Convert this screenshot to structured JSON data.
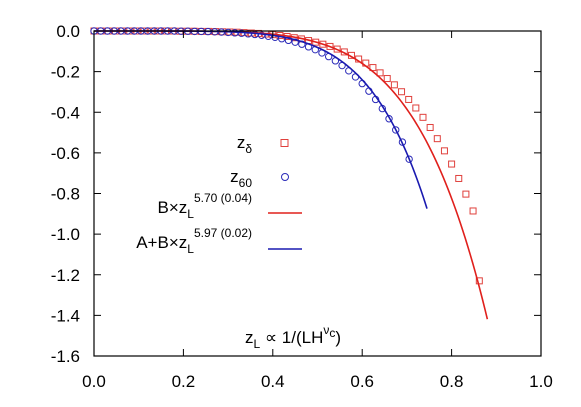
{
  "chart_data": {
    "type": "scatter",
    "title": "",
    "xlabel": "",
    "ylabel": "",
    "xlim": [
      0.0,
      1.0
    ],
    "ylim": [
      -1.6,
      0.0
    ],
    "x_ticks": [
      "0.0",
      "0.2",
      "0.4",
      "0.6",
      "0.8",
      "1.0"
    ],
    "y_ticks": [
      "0.0",
      "-0.2",
      "-0.4",
      "-0.6",
      "-0.8",
      "-1.0",
      "-1.2",
      "-1.4",
      "-1.6"
    ],
    "grid": false,
    "legend_position": "center-right",
    "annotation": {
      "base": "z",
      "base_sub": "L",
      "middle": " ∝ 1/(LH",
      "exp": "ν",
      "exp_sub": "c",
      "end": ")"
    },
    "series": [
      {
        "name": "z_δ",
        "label_base": "z",
        "label_sub": "δ",
        "kind": "markers",
        "marker": "square",
        "color": "#e0403c",
        "x": [
          0.0,
          0.016,
          0.032,
          0.048,
          0.064,
          0.08,
          0.096,
          0.112,
          0.128,
          0.144,
          0.16,
          0.176,
          0.192,
          0.208,
          0.224,
          0.24,
          0.256,
          0.272,
          0.288,
          0.304,
          0.32,
          0.336,
          0.352,
          0.368,
          0.384,
          0.4,
          0.416,
          0.432,
          0.448,
          0.464,
          0.48,
          0.496,
          0.512,
          0.528,
          0.544,
          0.56,
          0.576,
          0.592,
          0.608,
          0.624,
          0.64,
          0.656,
          0.672,
          0.688,
          0.704,
          0.72,
          0.736,
          0.752,
          0.768,
          0.784,
          0.8,
          0.816,
          0.832,
          0.848,
          0.862
        ],
        "y": [
          0.0,
          0.0,
          0.0,
          0.0,
          0.0,
          0.0,
          0.0,
          0.0,
          0.0,
          0.0,
          0.0,
          0.0,
          -0.001,
          -0.001,
          -0.001,
          -0.002,
          -0.002,
          -0.003,
          -0.004,
          -0.005,
          -0.006,
          -0.008,
          -0.01,
          -0.012,
          -0.015,
          -0.018,
          -0.022,
          -0.027,
          -0.033,
          -0.039,
          -0.047,
          -0.055,
          -0.065,
          -0.076,
          -0.089,
          -0.103,
          -0.12,
          -0.138,
          -0.158,
          -0.18,
          -0.206,
          -0.234,
          -0.265,
          -0.299,
          -0.337,
          -0.379,
          -0.425,
          -0.475,
          -0.53,
          -0.59,
          -0.655,
          -0.726,
          -0.803,
          -0.886,
          -1.23
        ]
      },
      {
        "name": "z_60",
        "label_base": "z",
        "label_sub": "60",
        "kind": "markers",
        "marker": "circle",
        "color": "#2a2ab8",
        "x": [
          0.0,
          0.015,
          0.03,
          0.045,
          0.06,
          0.075,
          0.09,
          0.105,
          0.12,
          0.135,
          0.15,
          0.165,
          0.18,
          0.195,
          0.21,
          0.225,
          0.24,
          0.255,
          0.27,
          0.285,
          0.3,
          0.315,
          0.33,
          0.345,
          0.36,
          0.375,
          0.39,
          0.405,
          0.42,
          0.435,
          0.45,
          0.465,
          0.48,
          0.495,
          0.51,
          0.525,
          0.54,
          0.555,
          0.57,
          0.585,
          0.6,
          0.615,
          0.63,
          0.645,
          0.66,
          0.675,
          0.69,
          0.705
        ],
        "y": [
          0.0,
          0.0,
          0.0,
          0.0,
          0.0,
          0.0,
          0.0,
          0.0,
          0.0,
          0.0,
          0.0,
          0.0,
          0.0,
          -0.001,
          -0.001,
          -0.002,
          -0.002,
          -0.003,
          -0.004,
          -0.005,
          -0.007,
          -0.009,
          -0.011,
          -0.014,
          -0.017,
          -0.021,
          -0.026,
          -0.031,
          -0.038,
          -0.046,
          -0.055,
          -0.065,
          -0.078,
          -0.092,
          -0.108,
          -0.126,
          -0.147,
          -0.17,
          -0.196,
          -0.226,
          -0.259,
          -0.296,
          -0.337,
          -0.382,
          -0.432,
          -0.487,
          -0.547,
          -0.631
        ]
      },
      {
        "name": "B×z_L^5.70 (0.04)",
        "label_base": "B×z",
        "label_sub": "L",
        "label_exp": "5.70 (0.04)",
        "kind": "line",
        "color": "#e0201c",
        "fit": {
          "A": 0.0,
          "B": -2.94,
          "exponent": 5.7
        },
        "x_range": [
          0.0,
          0.88
        ]
      },
      {
        "name": "A+B×z_L^5.97 (0.02)",
        "label_base": "A+B×z",
        "label_sub": "L",
        "label_exp": "5.97 (0.02)",
        "kind": "line",
        "color": "#1a1ab0",
        "fit": {
          "A": 0.0,
          "B": -5.07,
          "exponent": 5.97
        },
        "x_range": [
          0.0,
          0.745
        ]
      }
    ]
  }
}
